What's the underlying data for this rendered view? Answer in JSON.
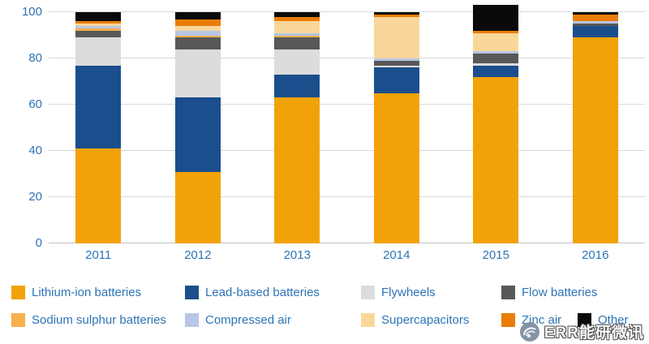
{
  "watermark": {
    "text": "ERR能研微讯"
  },
  "chart_data": {
    "type": "bar",
    "subtype": "stacked",
    "title": "",
    "xlabel": "",
    "ylabel": "",
    "ylim": [
      0,
      100
    ],
    "yticks": [
      0,
      20,
      40,
      60,
      80,
      100
    ],
    "grid": true,
    "legend_position": "bottom",
    "categories": [
      "2011",
      "2012",
      "2013",
      "2014",
      "2015",
      "2016"
    ],
    "series": [
      {
        "name": "Lithium-ion batteries",
        "color": "#f1a208",
        "values": [
          41,
          31,
          63,
          65,
          72,
          89
        ]
      },
      {
        "name": "Lead-based batteries",
        "color": "#1b4e8c",
        "values": [
          36,
          32,
          10,
          11,
          5,
          5
        ]
      },
      {
        "name": "Flywheels",
        "color": "#dcdcdc",
        "values": [
          12,
          21,
          11,
          1,
          1,
          0
        ]
      },
      {
        "name": "Flow batteries",
        "color": "#585858",
        "values": [
          3,
          5,
          5,
          2,
          4,
          1
        ]
      },
      {
        "name": "Sodium sulphur batteries",
        "color": "#f6b04e",
        "values": [
          1,
          1,
          1,
          0,
          0,
          0
        ]
      },
      {
        "name": "Compressed air",
        "color": "#b9c5e4",
        "values": [
          1,
          2,
          1,
          1,
          1,
          1
        ]
      },
      {
        "name": "Supercapacitors",
        "color": "#f9d79b",
        "values": [
          1,
          2,
          5,
          18,
          8,
          0
        ]
      },
      {
        "name": "Zinc air",
        "color": "#ea7d08",
        "values": [
          1,
          3,
          2,
          1,
          1,
          3
        ]
      },
      {
        "name": "Other",
        "color": "#0a0a0a",
        "values": [
          4,
          3,
          2,
          1,
          11,
          1
        ]
      }
    ]
  }
}
